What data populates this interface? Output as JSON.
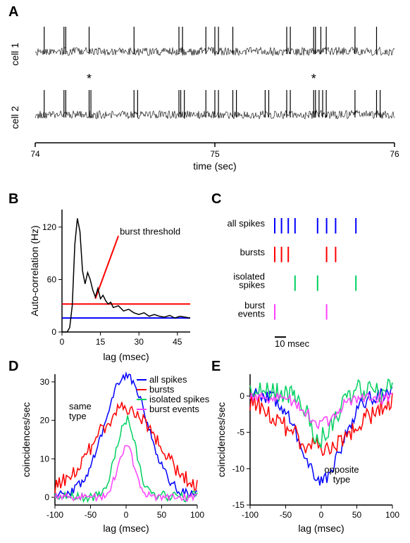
{
  "panels": {
    "A": "A",
    "B": "B",
    "C": "C",
    "D": "D",
    "E": "E"
  },
  "A": {
    "cell1_label": "cell 1",
    "cell2_label": "cell 2",
    "xaxis_label": "time (sec)",
    "xticks": [
      "74",
      "75",
      "76"
    ],
    "asterisk": "*",
    "spike_color": "#000000",
    "background": "#ffffff",
    "axis_fontsize": 14,
    "tick_fontsize": 12,
    "trace_noise_amp": 6,
    "spike_height": 35,
    "cell1_spikes": [
      74.05,
      74.16,
      74.17,
      74.3,
      74.55,
      74.8,
      74.82,
      74.95,
      75.0,
      75.02,
      75.1,
      75.4,
      75.42,
      75.55,
      75.56,
      75.59,
      75.62,
      75.78,
      75.9
    ],
    "cell2_spikes": [
      74.05,
      74.16,
      74.17,
      74.3,
      74.31,
      74.55,
      74.57,
      74.8,
      74.81,
      74.83,
      74.95,
      75.0,
      75.02,
      75.1,
      75.12,
      75.28,
      75.3,
      75.4,
      75.42,
      75.55,
      75.56,
      75.58,
      75.6,
      75.62,
      75.78,
      75.9,
      75.92
    ],
    "asterisk_x": [
      74.3,
      75.55
    ]
  },
  "B": {
    "xaxis_label": "lag (msec)",
    "yaxis_label": "Auto-correlation (Hz)",
    "annotation": "burst threshold",
    "xlim": [
      0,
      50
    ],
    "xticks": [
      0,
      15,
      30,
      45
    ],
    "ylim": [
      0,
      140
    ],
    "yticks": [
      0,
      60,
      120
    ],
    "line_color": "#000000",
    "threshold_color": "#ff0000",
    "baseline_color": "#0000ff",
    "threshold_y": 32,
    "baseline_y": 16,
    "axis_fontsize": 13,
    "tick_fontsize": 12,
    "line_width": 1.5,
    "data": [
      [
        0,
        0
      ],
      [
        2,
        0
      ],
      [
        3,
        5
      ],
      [
        4,
        30
      ],
      [
        5,
        100
      ],
      [
        6,
        130
      ],
      [
        7,
        115
      ],
      [
        8,
        70
      ],
      [
        9,
        55
      ],
      [
        10,
        68
      ],
      [
        11,
        60
      ],
      [
        12,
        48
      ],
      [
        13,
        40
      ],
      [
        14,
        50
      ],
      [
        15,
        38
      ],
      [
        16,
        42
      ],
      [
        17,
        36
      ],
      [
        18,
        32
      ],
      [
        19,
        34
      ],
      [
        20,
        28
      ],
      [
        22,
        30
      ],
      [
        24,
        24
      ],
      [
        26,
        26
      ],
      [
        28,
        22
      ],
      [
        30,
        20
      ],
      [
        32,
        22
      ],
      [
        34,
        18
      ],
      [
        36,
        20
      ],
      [
        38,
        18
      ],
      [
        40,
        17
      ],
      [
        42,
        19
      ],
      [
        44,
        16
      ],
      [
        46,
        18
      ],
      [
        48,
        17
      ],
      [
        50,
        16
      ]
    ]
  },
  "C": {
    "rows": [
      {
        "label": "all spikes",
        "color": "#0000ff",
        "ticks": [
          0,
          6,
          12,
          18,
          38,
          46,
          54,
          72
        ]
      },
      {
        "label": "bursts",
        "color": "#ff0000",
        "ticks": [
          0,
          6,
          12,
          46,
          54
        ]
      },
      {
        "label": "isolated\nspikes",
        "color": "#00d060",
        "ticks": [
          18,
          38,
          72
        ]
      },
      {
        "label": "burst\nevents",
        "color": "#ff40ff",
        "ticks": [
          0,
          46
        ]
      }
    ],
    "scalebar_label": "10 msec",
    "scalebar_ms": 10,
    "row_spacing": 34,
    "tick_height": 22,
    "tick_width": 2,
    "label_fontsize": 12
  },
  "D": {
    "title": "same\ntype",
    "xaxis_label": "lag (msec)",
    "yaxis_label": "coincidences/sec",
    "xlim": [
      -100,
      100
    ],
    "xticks": [
      -100,
      -50,
      0,
      50,
      100
    ],
    "ylim": [
      -2,
      32
    ],
    "yticks": [
      0,
      10,
      20,
      30
    ],
    "axis_fontsize": 13,
    "tick_fontsize": 12,
    "line_width": 1.5,
    "legend": [
      {
        "label": "all spikes",
        "color": "#0000ff"
      },
      {
        "label": "bursts",
        "color": "#ff0000"
      },
      {
        "label": "isolated spikes",
        "color": "#00d060"
      },
      {
        "label": "burst events",
        "color": "#ff40ff"
      }
    ],
    "series": [
      {
        "color": "#0000ff",
        "peak": 31,
        "width": 30,
        "base": 0.5,
        "noise": 1.2
      },
      {
        "color": "#ff0000",
        "peak": 22,
        "width": 45,
        "base": 1.0,
        "noise": 2.0
      },
      {
        "color": "#00d060",
        "peak": 20,
        "width": 14,
        "base": 0.2,
        "noise": 1.4
      },
      {
        "color": "#ff40ff",
        "peak": 13,
        "width": 12,
        "base": 0.0,
        "noise": 1.0
      }
    ]
  },
  "E": {
    "title": "opposite\ntype",
    "xaxis_label": "lag (msec)",
    "yaxis_label": "coincidences/sec",
    "xlim": [
      -100,
      100
    ],
    "xticks": [
      -100,
      -50,
      0,
      50,
      100
    ],
    "ylim": [
      -15,
      3
    ],
    "yticks": [
      -15,
      -10,
      -5,
      0
    ],
    "axis_fontsize": 13,
    "tick_fontsize": 12,
    "line_width": 1.5,
    "series": [
      {
        "color": "#0000ff",
        "peak": -12,
        "width": 28,
        "base": 0.3,
        "noise": 1.0
      },
      {
        "color": "#ff0000",
        "peak": -7.5,
        "width": 50,
        "base": 0.3,
        "noise": 1.4
      },
      {
        "color": "#00d060",
        "peak": -6.5,
        "width": 18,
        "base": 0.7,
        "noise": 1.6
      },
      {
        "color": "#ff40ff",
        "peak": -3.5,
        "width": 20,
        "base": -0.3,
        "noise": 0.8
      }
    ]
  }
}
